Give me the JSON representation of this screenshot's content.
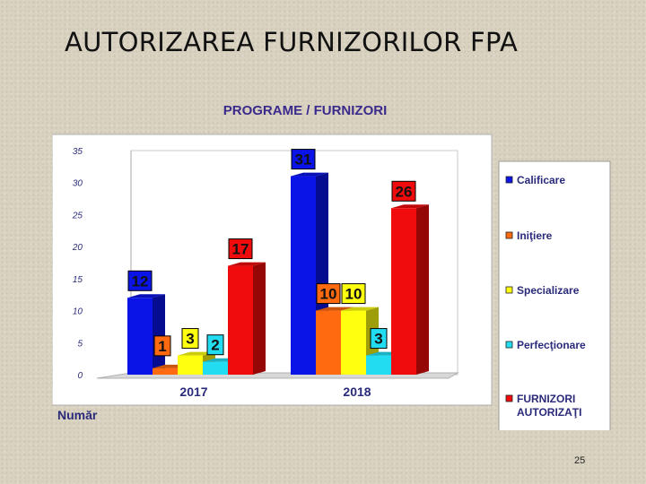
{
  "slide": {
    "title": "AUTORIZAREA FURNIZORILOR FPA",
    "page_number": "25"
  },
  "chart_data": {
    "type": "bar",
    "title": "PROGRAME / FURNIZORI",
    "xlabel": "",
    "ylabel": "Număr",
    "ylim": [
      0,
      35
    ],
    "yticks": [
      0,
      5,
      10,
      15,
      20,
      25,
      30,
      35
    ],
    "categories": [
      "2017",
      "2018"
    ],
    "grid": false,
    "legend_position": "right",
    "series": [
      {
        "name": "Calificare",
        "values": [
          12,
          31
        ],
        "color": "#0a14e6"
      },
      {
        "name": "Iniţiere",
        "values": [
          1,
          10
        ],
        "color": "#ff6a10"
      },
      {
        "name": "Specializare",
        "values": [
          3,
          10
        ],
        "color": "#ffff10"
      },
      {
        "name": "Perfecţionare",
        "values": [
          2,
          3
        ],
        "color": "#22ddf2"
      },
      {
        "name": "FURNIZORI AUTORIZAŢI",
        "values": [
          17,
          26
        ],
        "color": "#f00c0c"
      }
    ]
  }
}
